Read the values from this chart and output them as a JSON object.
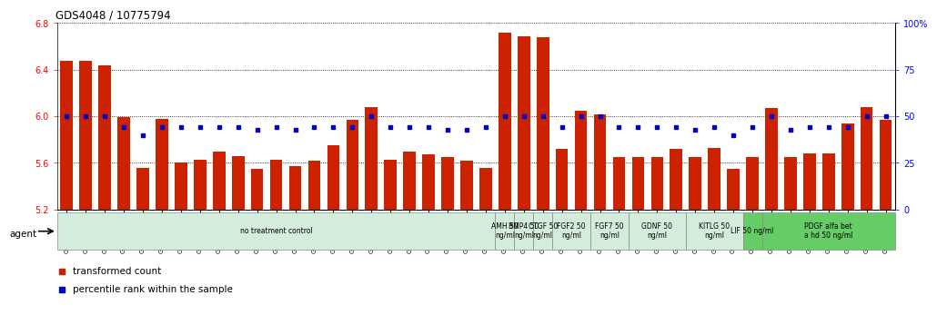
{
  "title": "GDS4048 / 10775794",
  "ylim_left": [
    5.2,
    6.8
  ],
  "ylim_right": [
    0,
    100
  ],
  "yticks_left": [
    5.2,
    5.6,
    6.0,
    6.4,
    6.8
  ],
  "yticks_right": [
    0,
    25,
    50,
    75,
    100
  ],
  "categories": [
    "GSM509254",
    "GSM509255",
    "GSM509256",
    "GSM510028",
    "GSM510029",
    "GSM510030",
    "GSM510031",
    "GSM510032",
    "GSM510033",
    "GSM510034",
    "GSM510035",
    "GSM510036",
    "GSM510037",
    "GSM510038",
    "GSM510039",
    "GSM510040",
    "GSM510041",
    "GSM510042",
    "GSM510043",
    "GSM510044",
    "GSM510045",
    "GSM510046",
    "GSM510047",
    "GSM509257",
    "GSM509258",
    "GSM509259",
    "GSM510063",
    "GSM510064",
    "GSM510065",
    "GSM510051",
    "GSM510052",
    "GSM510053",
    "GSM510048",
    "GSM510049",
    "GSM510050",
    "GSM510054",
    "GSM510055",
    "GSM510056",
    "GSM510057",
    "GSM510058",
    "GSM510059",
    "GSM510060",
    "GSM510061",
    "GSM510062"
  ],
  "bar_values": [
    6.48,
    6.48,
    6.44,
    5.99,
    5.56,
    5.98,
    5.6,
    5.63,
    5.7,
    5.66,
    5.55,
    5.63,
    5.57,
    5.62,
    5.75,
    5.97,
    6.08,
    5.63,
    5.7,
    5.67,
    5.65,
    5.62,
    5.56,
    6.72,
    6.69,
    6.68,
    5.72,
    6.05,
    6.02,
    5.65,
    5.65,
    5.65,
    5.72,
    5.65,
    5.73,
    5.55,
    5.65,
    6.07,
    5.65,
    5.68,
    5.68,
    5.94,
    6.08,
    5.97
  ],
  "percentile_values": [
    50,
    50,
    50,
    44,
    40,
    44,
    44,
    44,
    44,
    44,
    43,
    44,
    43,
    44,
    44,
    44,
    50,
    44,
    44,
    44,
    43,
    43,
    44,
    50,
    50,
    50,
    44,
    50,
    50,
    44,
    44,
    44,
    44,
    43,
    44,
    40,
    44,
    50,
    43,
    44,
    44,
    44,
    50,
    50
  ],
  "bar_color": "#cc2200",
  "percentile_color": "#0000cc",
  "background_color": "#ffffff",
  "agent_groups": [
    {
      "label": "no treatment control",
      "start": 0,
      "end": 23,
      "color": "#d4edda",
      "bright": false
    },
    {
      "label": "AMH 50\nng/ml",
      "start": 23,
      "end": 24,
      "color": "#d4edda",
      "bright": false
    },
    {
      "label": "BMP4 50\nng/ml",
      "start": 24,
      "end": 25,
      "color": "#d4edda",
      "bright": false
    },
    {
      "label": "CTGF 50\nng/ml",
      "start": 25,
      "end": 26,
      "color": "#d4edda",
      "bright": false
    },
    {
      "label": "FGF2 50\nng/ml",
      "start": 26,
      "end": 28,
      "color": "#d4edda",
      "bright": false
    },
    {
      "label": "FGF7 50\nng/ml",
      "start": 28,
      "end": 30,
      "color": "#d4edda",
      "bright": false
    },
    {
      "label": "GDNF 50\nng/ml",
      "start": 30,
      "end": 33,
      "color": "#d4edda",
      "bright": false
    },
    {
      "label": "KITLG 50\nng/ml",
      "start": 33,
      "end": 36,
      "color": "#d4edda",
      "bright": false
    },
    {
      "label": "LIF 50 ng/ml",
      "start": 36,
      "end": 37,
      "color": "#66cc66",
      "bright": true
    },
    {
      "label": "PDGF alfa bet\na hd 50 ng/ml",
      "start": 37,
      "end": 44,
      "color": "#66cc66",
      "bright": true
    }
  ],
  "legend_bar_label": "transformed count",
  "legend_pct_label": "percentile rank within the sample",
  "agent_label": "agent"
}
